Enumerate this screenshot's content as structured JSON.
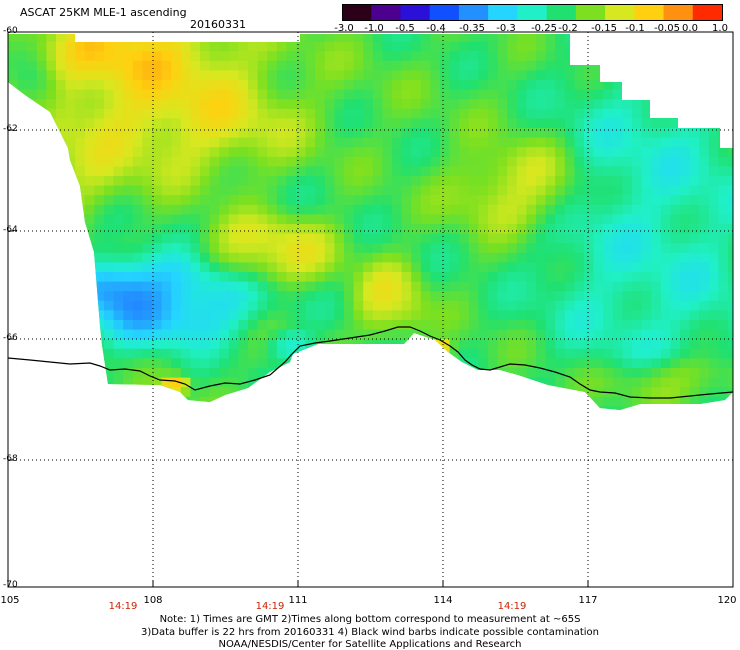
{
  "header": {
    "title": "ASCAT 25KM MLE-1 ascending",
    "date": "20160331"
  },
  "colorbar": {
    "tick_labels": [
      "-3.0",
      "-1.0",
      "-0.5",
      "-0.4",
      "-0.35",
      "-0.3",
      "-0.25",
      "-0.2",
      "-0.15",
      "-0.1",
      "-0.05",
      "0.0",
      "1.0"
    ],
    "colors": [
      "#2b0018",
      "#4b0090",
      "#2a10d8",
      "#1050ff",
      "#2390ff",
      "#24d6ff",
      "#20f0c8",
      "#20e070",
      "#7ce020",
      "#d8e820",
      "#ffd010",
      "#ff9010",
      "#ff2a00"
    ]
  },
  "axes": {
    "lat_labels": [
      "-60",
      "-62",
      "-64",
      "-66",
      "-68",
      "-70"
    ],
    "lon_labels": [
      "105",
      "108",
      "111",
      "114",
      "117",
      "120"
    ]
  },
  "time_labels": [
    "14:19",
    "14:19",
    "14:19"
  ],
  "notes": {
    "line1": "Note: 1) Times are GMT 2)Times along bottom correspond to measurement at ~65S",
    "line2": "3)Data buffer is 22 hrs from 20160331 4) Black wind barbs indicate possible contamination",
    "line3": "NOAA/NESDIS/Center for Satellite Applications and Research"
  }
}
